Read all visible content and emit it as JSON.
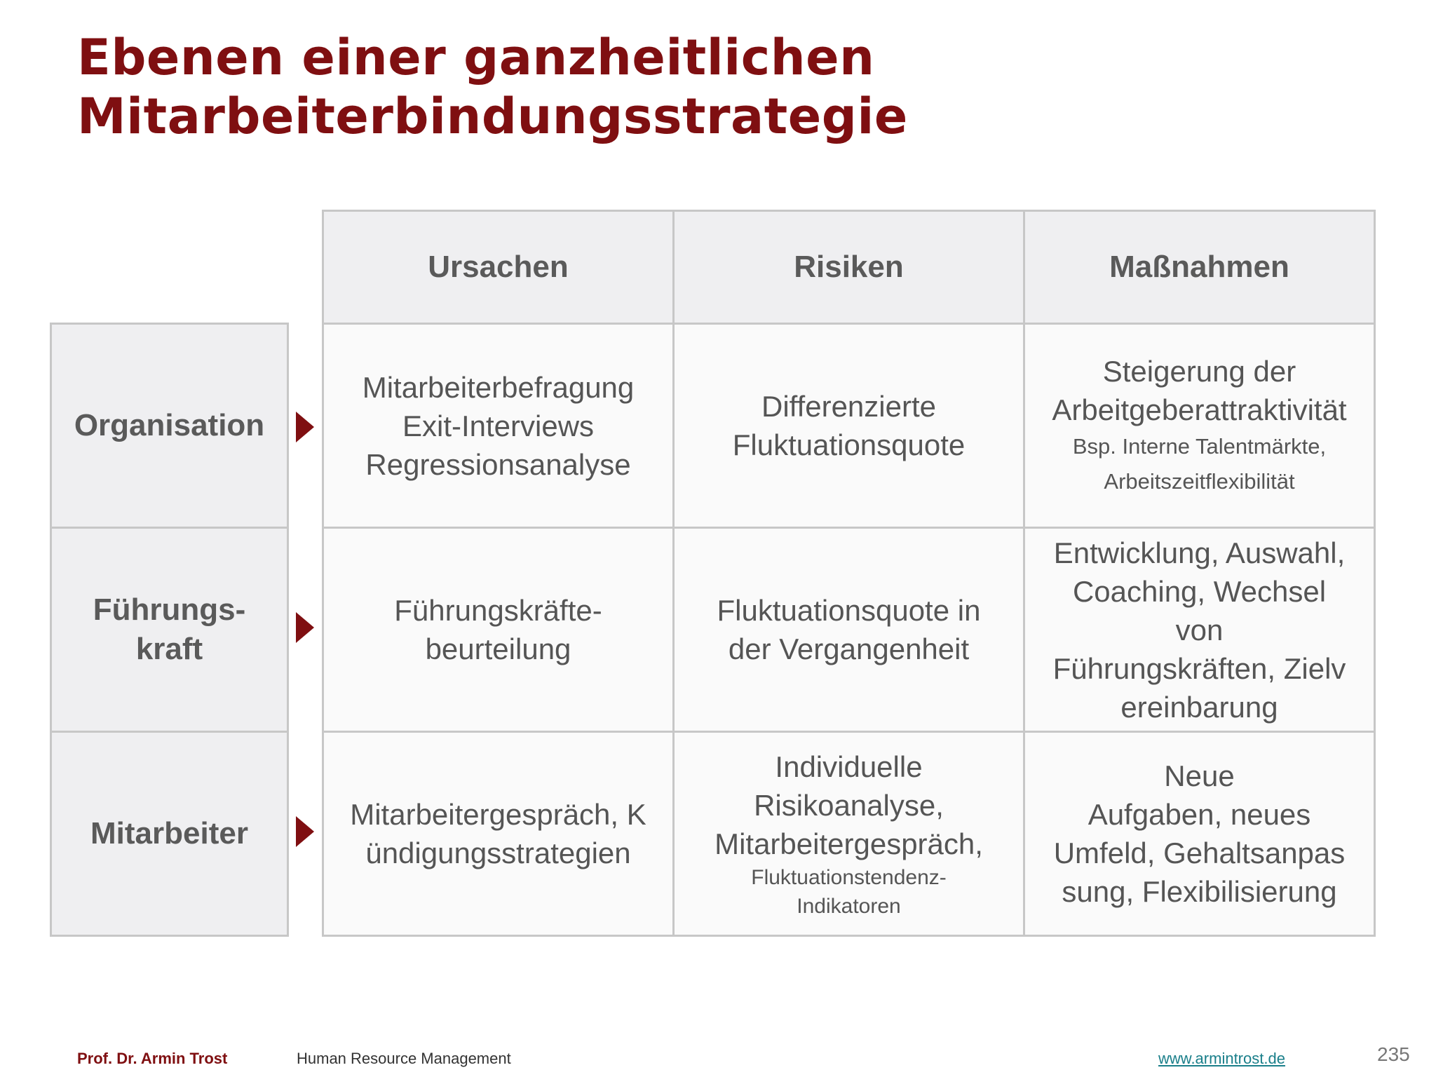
{
  "title": {
    "line1": "Ebenen einer ganzheitlichen",
    "line2": "Mitarbeiterbindungsstrategie"
  },
  "table": {
    "headers": [
      "Ursachen",
      "Risiken",
      "Maßnahmen"
    ],
    "rows": [
      {
        "label": [
          "Organisation"
        ],
        "ursachen": [
          "Mitarbeiterbefragung",
          "Exit-Interviews",
          "Regressionsanalyse"
        ],
        "risiken": [
          "Differenzierte",
          "Fluktuationsquote"
        ],
        "massnahmen": [
          "Steigerung der",
          "Arbeitgeberattraktivität"
        ],
        "massnahmen_small": [
          "Bsp. Interne Talentmärkte,",
          "Arbeitszeitflexibilität"
        ]
      },
      {
        "label": [
          "Führungs-",
          "kraft"
        ],
        "ursachen": [
          "Führungskräfte-",
          "beurteilung"
        ],
        "risiken": [
          "Fluktuationsquote in",
          "der Vergangenheit"
        ],
        "massnahmen": [
          "Entwicklung, Auswahl,",
          "Coaching, Wechsel",
          "von",
          "Führungskräften, Zielv",
          "ereinbarung"
        ]
      },
      {
        "label": [
          "Mitarbeiter"
        ],
        "ursachen": [
          "Mitarbeitergespräch, K",
          "ündigungsstrategien"
        ],
        "risiken": [
          "Individuelle",
          "Risikoanalyse,",
          "Mitarbeitergespräch,"
        ],
        "risiken_small": [
          "Fluktuationstendenz-",
          "Indikatoren"
        ],
        "massnahmen": [
          "Neue",
          "Aufgaben, neues",
          "Umfeld, Gehaltsanpas",
          "sung, Flexibilisierung"
        ]
      }
    ]
  },
  "footer": {
    "author": "Prof. Dr. Armin Trost",
    "course": "Human Resource Management",
    "link": "www.armintrost.de",
    "page": "235"
  },
  "colors": {
    "accent": "#7f0f11",
    "header_bg": "#efeff1",
    "border": "#c7c7c7",
    "link": "#1a7f8a"
  }
}
